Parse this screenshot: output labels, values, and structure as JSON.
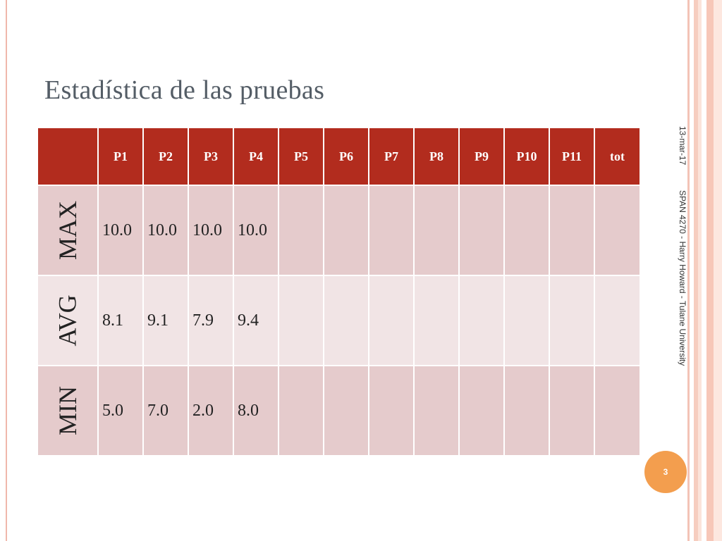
{
  "slide": {
    "title": "Estadística de las pruebas",
    "date": "13-mar-17",
    "footer": "SPAN 4270 - Harry Howard - Tulane University",
    "number": "3"
  },
  "table": {
    "headers": [
      "P1",
      "P2",
      "P3",
      "P4",
      "P5",
      "P6",
      "P7",
      "P8",
      "P9",
      "P10",
      "P11",
      "tot"
    ],
    "rows": [
      {
        "label": "MAX",
        "cells": [
          "10.0",
          "10.0",
          "10.0",
          "10.0",
          "",
          "",
          "",
          "",
          "",
          "",
          "",
          ""
        ]
      },
      {
        "label": "AVG",
        "cells": [
          "8.1",
          "9.1",
          "7.9",
          "9.4",
          "",
          "",
          "",
          "",
          "",
          "",
          "",
          ""
        ]
      },
      {
        "label": "MIN",
        "cells": [
          "5.0",
          "7.0",
          "2.0",
          "8.0",
          "",
          "",
          "",
          "",
          "",
          "",
          "",
          ""
        ]
      }
    ]
  },
  "colors": {
    "header_bg": "#b22c1e",
    "row_dark": "#e5cbcc",
    "row_light": "#f1e4e5",
    "badge": "#f39e4e"
  }
}
